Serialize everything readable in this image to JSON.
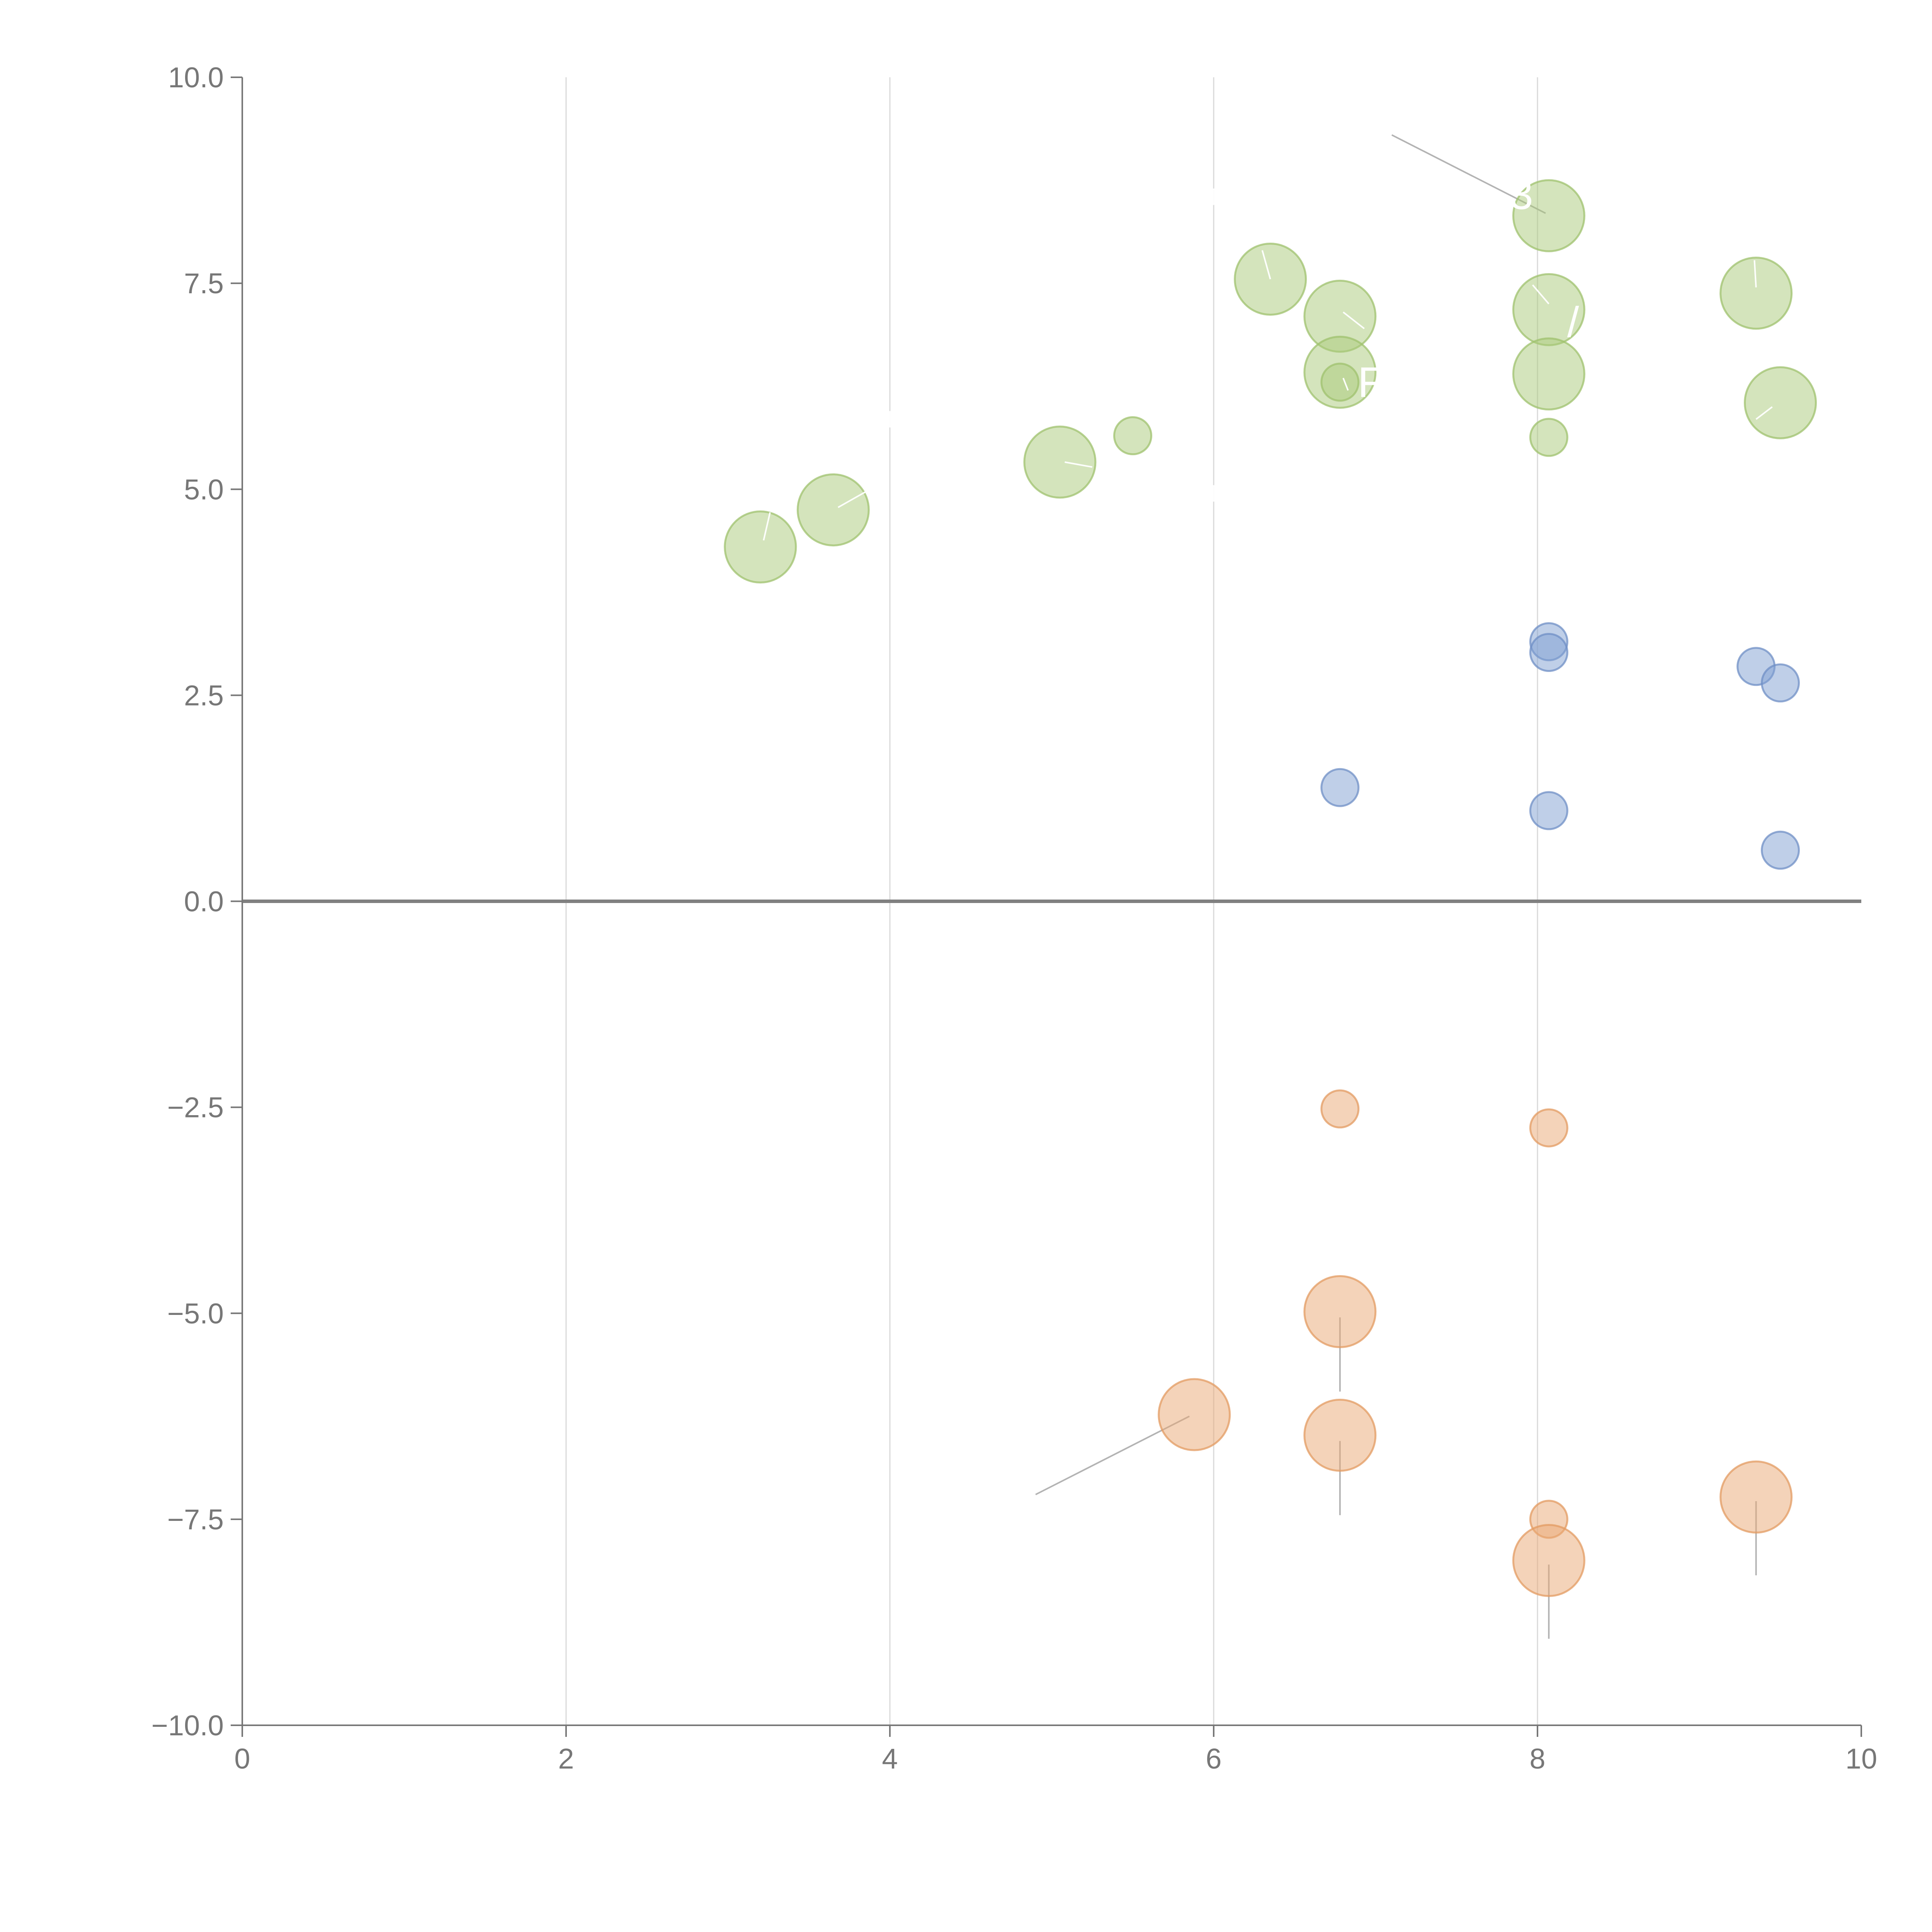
{
  "chart_data": {
    "type": "scatter",
    "title": "",
    "xlabel": "",
    "ylabel": "",
    "xlim": [
      0,
      10
    ],
    "ylim": [
      -10,
      10
    ],
    "x_ticks": [
      0,
      2,
      4,
      6,
      8,
      10
    ],
    "x_tick_labels": [
      "0",
      "2",
      "4",
      "6",
      "8",
      "10"
    ],
    "y_ticks": [
      10,
      7.5,
      5,
      2.5,
      0,
      -2.5,
      -5,
      -7.5,
      -10
    ],
    "y_tick_labels": [
      "10.0",
      "7.5",
      "5.0",
      "2.5",
      "0.0",
      "−2.5",
      "−5.0",
      "−7.5",
      "−10.0"
    ],
    "vertical_grid_at": [
      2,
      4,
      6,
      8
    ],
    "zero_line": true,
    "series": [
      {
        "name": "green",
        "color": "#a9c97a",
        "stroke": "#9fc16e",
        "points": [
          {
            "x": 3.2,
            "y": 4.3,
            "size": 3
          },
          {
            "x": 3.65,
            "y": 4.75,
            "size": 3
          },
          {
            "x": 5.05,
            "y": 5.33,
            "size": 3
          },
          {
            "x": 5.5,
            "y": 5.65,
            "size": 1
          },
          {
            "x": 6.35,
            "y": 7.55,
            "size": 3
          },
          {
            "x": 6.78,
            "y": 7.1,
            "size": 3
          },
          {
            "x": 6.78,
            "y": 6.42,
            "size": 3
          },
          {
            "x": 6.78,
            "y": 6.3,
            "size": 1
          },
          {
            "x": 8.07,
            "y": 8.32,
            "size": 3
          },
          {
            "x": 8.07,
            "y": 7.18,
            "size": 3
          },
          {
            "x": 8.07,
            "y": 6.4,
            "size": 3
          },
          {
            "x": 8.07,
            "y": 5.63,
            "size": 1
          },
          {
            "x": 9.35,
            "y": 7.38,
            "size": 3
          },
          {
            "x": 9.5,
            "y": 6.05,
            "size": 3
          }
        ]
      },
      {
        "name": "blue",
        "color": "#7f9fd1",
        "stroke": "#6f8fc5",
        "points": [
          {
            "x": 6.78,
            "y": 1.38,
            "size": 1
          },
          {
            "x": 8.07,
            "y": 3.15,
            "size": 1
          },
          {
            "x": 8.07,
            "y": 3.02,
            "size": 1
          },
          {
            "x": 8.07,
            "y": 1.1,
            "size": 1
          },
          {
            "x": 9.35,
            "y": 2.85,
            "size": 1
          },
          {
            "x": 9.5,
            "y": 2.65,
            "size": 1
          },
          {
            "x": 9.5,
            "y": 0.62,
            "size": 1
          }
        ]
      },
      {
        "name": "orange",
        "color": "#e9a873",
        "stroke": "#e39b62",
        "points": [
          {
            "x": 6.78,
            "y": -2.52,
            "size": 1
          },
          {
            "x": 8.07,
            "y": -2.75,
            "size": 1
          },
          {
            "x": 6.78,
            "y": -4.98,
            "size": 3
          },
          {
            "x": 5.88,
            "y": -6.23,
            "size": 3
          },
          {
            "x": 6.78,
            "y": -6.48,
            "size": 3
          },
          {
            "x": 8.07,
            "y": -7.5,
            "size": 1
          },
          {
            "x": 8.07,
            "y": -8.0,
            "size": 3
          },
          {
            "x": 9.35,
            "y": -7.23,
            "size": 3
          }
        ]
      }
    ],
    "leader_lines": [
      {
        "x1": 7.1,
        "y1": 9.3,
        "x2": 8.05,
        "y2": 8.35,
        "color": "#b3b3b3"
      },
      {
        "x1": 4.9,
        "y1": -7.2,
        "x2": 5.85,
        "y2": -6.25,
        "color": "#b3b3b3"
      },
      {
        "x1": 6.78,
        "y1": -5.05,
        "x2": 6.78,
        "y2": -5.95,
        "color": "#b3b3b3"
      },
      {
        "x1": 6.78,
        "y1": -6.55,
        "x2": 6.78,
        "y2": -7.45,
        "color": "#b3b3b3"
      },
      {
        "x1": 8.07,
        "y1": -8.05,
        "x2": 8.07,
        "y2": -8.95,
        "color": "#b3b3b3"
      },
      {
        "x1": 9.35,
        "y1": -7.28,
        "x2": 9.35,
        "y2": -8.18,
        "color": "#b3b3b3"
      },
      {
        "x1": 3.22,
        "y1": 4.38,
        "x2": 3.26,
        "y2": 4.72,
        "color": "#ffffff"
      },
      {
        "x1": 3.68,
        "y1": 4.78,
        "x2": 3.86,
        "y2": 4.98,
        "color": "#ffffff"
      },
      {
        "x1": 5.08,
        "y1": 5.33,
        "x2": 5.25,
        "y2": 5.27,
        "color": "#ffffff"
      },
      {
        "x1": 6.35,
        "y1": 7.55,
        "x2": 6.3,
        "y2": 7.9,
        "color": "#ffffff"
      },
      {
        "x1": 6.93,
        "y1": 6.95,
        "x2": 6.8,
        "y2": 7.15,
        "color": "#ffffff"
      },
      {
        "x1": 6.83,
        "y1": 6.2,
        "x2": 6.8,
        "y2": 6.35,
        "color": "#ffffff"
      },
      {
        "x1": 8.07,
        "y1": 7.25,
        "x2": 7.97,
        "y2": 7.48,
        "color": "#ffffff"
      },
      {
        "x1": 9.35,
        "y1": 7.45,
        "x2": 9.34,
        "y2": 7.78,
        "color": "#ffffff"
      },
      {
        "x1": 9.45,
        "y1": 6.0,
        "x2": 9.35,
        "y2": 5.85,
        "color": "#ffffff"
      },
      {
        "x1": 6.0,
        "y1": 4.85,
        "x2": 6.0,
        "y2": 5.05,
        "color": "#ffffff"
      },
      {
        "x1": 6.0,
        "y1": 8.45,
        "x2": 6.0,
        "y2": 8.65,
        "color": "#ffffff"
      },
      {
        "x1": 4.0,
        "y1": 5.75,
        "x2": 4.0,
        "y2": 5.95,
        "color": "#ffffff"
      }
    ],
    "annotations": [
      {
        "text": "3",
        "x": 7.9,
        "y": 8.4,
        "color": "#ffffff"
      },
      {
        "text": "/",
        "x": 8.22,
        "y": 6.85,
        "color": "#ffffff"
      },
      {
        "text": "F",
        "x": 6.97,
        "y": 6.12,
        "color": "#ffffff"
      }
    ]
  }
}
